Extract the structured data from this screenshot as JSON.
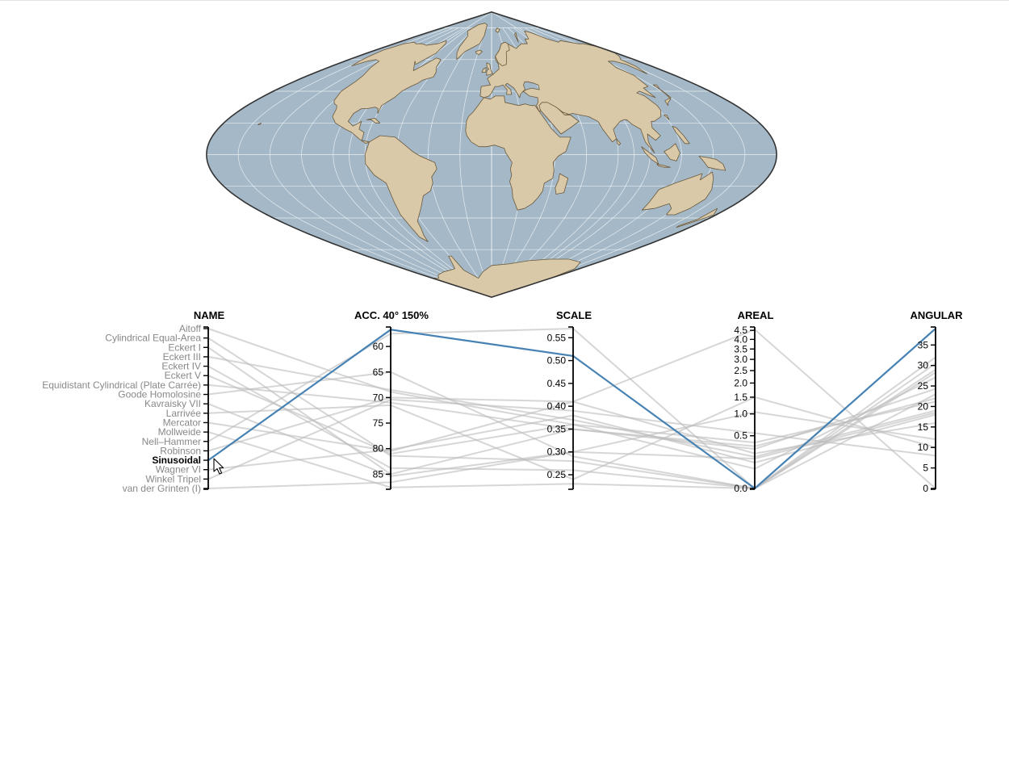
{
  "colors": {
    "ocean": "#a4b8c7",
    "land": "#d9c9a9",
    "land_stroke": "#6a5a3c",
    "outline": "#333333",
    "graticule": "#ffffff",
    "highlight": "#4682b4",
    "background_lines": "#bdbdbd"
  },
  "map": {
    "projection": "Sinusoidal",
    "graticule": true
  },
  "cursor_icon": "mouse-pointer-icon",
  "chart_data": {
    "type": "parallel-coordinates",
    "selected": "Sinusoidal",
    "axes": [
      {
        "key": "name",
        "label": "NAME",
        "kind": "ordinal"
      },
      {
        "key": "acc",
        "label": "ACC. 40° 150%",
        "kind": "linear",
        "domain": [
          56.5,
          87.8
        ],
        "inverted": true,
        "ticks": [
          {
            "v": 60,
            "t": "60"
          },
          {
            "v": 65,
            "t": "65"
          },
          {
            "v": 70,
            "t": "70"
          },
          {
            "v": 75,
            "t": "75"
          },
          {
            "v": 80,
            "t": "80"
          },
          {
            "v": 85,
            "t": "85"
          }
        ]
      },
      {
        "key": "scale",
        "label": "SCALE",
        "kind": "linear",
        "domain": [
          0.22,
          0.57
        ],
        "ticks": [
          {
            "v": 0.25,
            "t": "0.25"
          },
          {
            "v": 0.3,
            "t": "0.30"
          },
          {
            "v": 0.35,
            "t": "0.35"
          },
          {
            "v": 0.4,
            "t": "0.40"
          },
          {
            "v": 0.45,
            "t": "0.45"
          },
          {
            "v": 0.5,
            "t": "0.50"
          },
          {
            "v": 0.55,
            "t": "0.55"
          }
        ]
      },
      {
        "key": "areal",
        "label": "AREAL",
        "kind": "sqrt",
        "domain": [
          0,
          4.6
        ],
        "ticks": [
          {
            "v": 0,
            "t": "0.0"
          },
          {
            "v": 0.5,
            "t": "0.5"
          },
          {
            "v": 1,
            "t": "1.0"
          },
          {
            "v": 1.5,
            "t": "1.5"
          },
          {
            "v": 2,
            "t": "2.0"
          },
          {
            "v": 2.5,
            "t": "2.5"
          },
          {
            "v": 3,
            "t": "3.0"
          },
          {
            "v": 3.5,
            "t": "3.5"
          },
          {
            "v": 4,
            "t": "4.0"
          },
          {
            "v": 4.5,
            "t": "4.5"
          }
        ]
      },
      {
        "key": "angular",
        "label": "ANGULAR",
        "kind": "linear",
        "domain": [
          0,
          39
        ],
        "ticks": [
          {
            "v": 0,
            "t": "0"
          },
          {
            "v": 5,
            "t": "5"
          },
          {
            "v": 10,
            "t": "10"
          },
          {
            "v": 15,
            "t": "15"
          },
          {
            "v": 20,
            "t": "20"
          },
          {
            "v": 25,
            "t": "25"
          },
          {
            "v": 30,
            "t": "30"
          },
          {
            "v": 35,
            "t": "35"
          }
        ]
      }
    ],
    "rows": [
      {
        "name": "Aitoff",
        "acc": 68.9,
        "scale": 0.36,
        "areal": 0.38,
        "angular": 21.2
      },
      {
        "name": "Cylindrical Equal-Area",
        "acc": 81.4,
        "scale": 0.28,
        "areal": 0.0,
        "angular": 32.0
      },
      {
        "name": "Eckert I",
        "acc": 85.0,
        "scale": 0.35,
        "areal": 0.28,
        "angular": 24.3
      },
      {
        "name": "Eckert III",
        "acc": 68.5,
        "scale": 0.37,
        "areal": 0.18,
        "angular": 19.0
      },
      {
        "name": "Eckert IV",
        "acc": 83.8,
        "scale": 0.26,
        "areal": 0.0,
        "angular": 28.3
      },
      {
        "name": "Eckert V",
        "acc": 81.0,
        "scale": 0.36,
        "areal": 0.07,
        "angular": 27.1
      },
      {
        "name": "Equidistant Cylindrical (Plate Carrée)",
        "acc": 71.0,
        "scale": 0.35,
        "areal": 0.32,
        "angular": 22.0
      },
      {
        "name": "Goode Homolosine",
        "acc": 65.0,
        "scale": 0.29,
        "areal": 0.0,
        "angular": 23.0
      },
      {
        "name": "Kavraisky VII",
        "acc": 85.4,
        "scale": 0.3,
        "areal": 0.16,
        "angular": 18.5
      },
      {
        "name": "Larrivée",
        "acc": 71.5,
        "scale": 0.24,
        "areal": 1.5,
        "angular": 10.0
      },
      {
        "name": "Mercator",
        "acc": 80.5,
        "scale": 0.41,
        "areal": 4.55,
        "angular": 0.0
      },
      {
        "name": "Mollweide",
        "acc": 87.6,
        "scale": 0.23,
        "areal": 0.0,
        "angular": 29.0
      },
      {
        "name": "Nell–Hammer",
        "acc": 57.5,
        "scale": 0.57,
        "areal": 0.0,
        "angular": 30.5
      },
      {
        "name": "Robinson",
        "acc": 70.0,
        "scale": 0.41,
        "areal": 0.22,
        "angular": 16.0
      },
      {
        "name": "Sinusoidal",
        "acc": 56.7,
        "scale": 0.51,
        "areal": 0.0,
        "angular": 39.0
      },
      {
        "name": "Wagner VI",
        "acc": 80.2,
        "scale": 0.38,
        "areal": 0.12,
        "angular": 18.0
      },
      {
        "name": "Winkel Tripel",
        "acc": 70.4,
        "scale": 0.39,
        "areal": 0.55,
        "angular": 8.0
      },
      {
        "name": "van der Grinten (I)",
        "acc": 86.6,
        "scale": 0.3,
        "areal": 1.05,
        "angular": 12.0
      }
    ]
  }
}
